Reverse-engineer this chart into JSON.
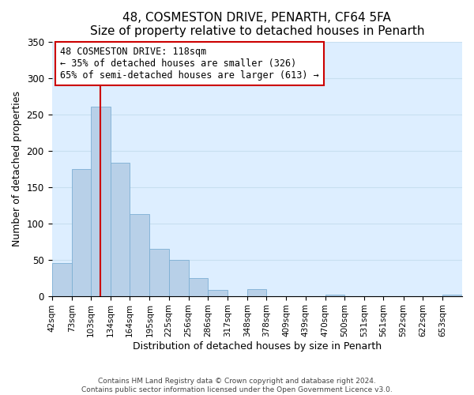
{
  "title": "48, COSMESTON DRIVE, PENARTH, CF64 5FA",
  "subtitle": "Size of property relative to detached houses in Penarth",
  "xlabel": "Distribution of detached houses by size in Penarth",
  "ylabel": "Number of detached properties",
  "bin_labels": [
    "42sqm",
    "73sqm",
    "103sqm",
    "134sqm",
    "164sqm",
    "195sqm",
    "225sqm",
    "256sqm",
    "286sqm",
    "317sqm",
    "348sqm",
    "378sqm",
    "409sqm",
    "439sqm",
    "470sqm",
    "500sqm",
    "531sqm",
    "561sqm",
    "592sqm",
    "622sqm",
    "653sqm"
  ],
  "bar_heights": [
    45,
    175,
    260,
    183,
    113,
    65,
    50,
    25,
    8,
    0,
    9,
    0,
    0,
    0,
    2,
    0,
    0,
    0,
    0,
    0,
    2
  ],
  "bar_color": "#b8d0e8",
  "bar_edge_color": "#7dafd4",
  "property_line_label": "48 COSMESTON DRIVE: 118sqm",
  "annotation_line1": "← 35% of detached houses are smaller (326)",
  "annotation_line2": "65% of semi-detached houses are larger (613) →",
  "annotation_box_facecolor": "#ffffff",
  "annotation_box_edgecolor": "#cc0000",
  "vline_color": "#cc0000",
  "ylim": [
    0,
    350
  ],
  "yticks": [
    0,
    50,
    100,
    150,
    200,
    250,
    300,
    350
  ],
  "footer_line1": "Contains HM Land Registry data © Crown copyright and database right 2024.",
  "footer_line2": "Contains public sector information licensed under the Open Government Licence v3.0.",
  "bin_edges": [
    42,
    73,
    103,
    134,
    164,
    195,
    225,
    256,
    286,
    317,
    348,
    378,
    409,
    439,
    470,
    500,
    531,
    561,
    592,
    622,
    653,
    684
  ],
  "property_size": 118,
  "bg_color": "#ddeeff",
  "grid_color": "#c8dff0",
  "title_fontsize": 11,
  "subtitle_fontsize": 10,
  "ylabel_fontsize": 9,
  "xlabel_fontsize": 9,
  "tick_fontsize": 7.5
}
